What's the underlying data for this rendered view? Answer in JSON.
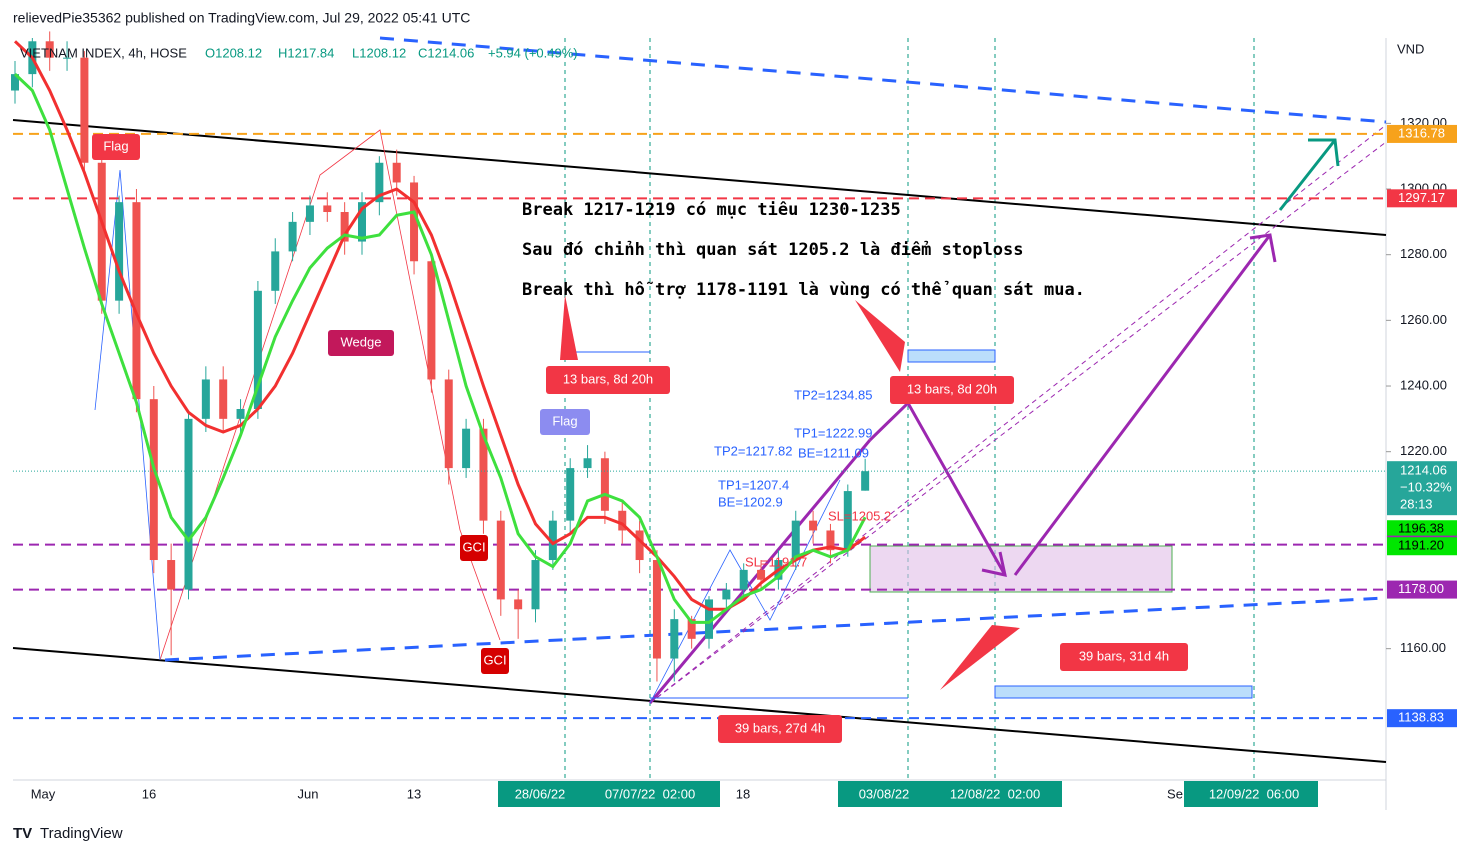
{
  "header": {
    "publisher": "relievedPie35362 published on TradingView.com, Jul 29, 2022 05:41 UTC",
    "brand": "TradingView"
  },
  "chart_data": {
    "type": "candlestick",
    "symbol": "VIETNAM INDEX, 4h, HOSE",
    "ohlc_legend": [
      "O1208.12",
      "H1217.84",
      "L1208.12",
      "C1214.06",
      "+5.94 (+0.49%)"
    ],
    "currency": "VND",
    "up_color": "#26a69a",
    "down_color": "#ef5350",
    "open": [
      1330,
      1335,
      1345,
      1340,
      1340,
      1308,
      1266,
      1296,
      1236,
      1187,
      1178,
      1230,
      1242,
      1230,
      1233,
      1269,
      1281,
      1290,
      1295,
      1293,
      1284,
      1296,
      1308,
      1302,
      1278,
      1242,
      1215,
      1227,
      1199,
      1175,
      1172,
      1187,
      1199,
      1215,
      1218,
      1202,
      1196,
      1187,
      1157,
      1169,
      1163,
      1175,
      1178,
      1184,
      1181,
      1187,
      1199,
      1196,
      1190,
      1208.12
    ],
    "high": [
      1339,
      1346,
      1348,
      1345,
      1342,
      1312,
      1298,
      1300,
      1240,
      1192,
      1232,
      1246,
      1246,
      1236,
      1272,
      1285,
      1293,
      1298,
      1299,
      1296,
      1299,
      1310,
      1312,
      1304,
      1280,
      1245,
      1230,
      1230,
      1202,
      1178,
      1190,
      1202,
      1218,
      1222,
      1220,
      1205,
      1199,
      1190,
      1172,
      1170,
      1176,
      1180,
      1186,
      1187,
      1190,
      1202,
      1202,
      1198,
      1210,
      1217.84
    ],
    "low": [
      1326,
      1331,
      1336,
      1336,
      1305,
      1262,
      1262,
      1232,
      1183,
      1158,
      1175,
      1226,
      1226,
      1226,
      1230,
      1265,
      1278,
      1286,
      1290,
      1280,
      1280,
      1292,
      1298,
      1274,
      1238,
      1210,
      1212,
      1195,
      1170,
      1163,
      1168,
      1184,
      1195,
      1212,
      1198,
      1192,
      1183,
      1150,
      1150,
      1160,
      1160,
      1172,
      1175,
      1178,
      1178,
      1184,
      1192,
      1186,
      1188,
      1208.12
    ],
    "close": [
      1335,
      1345,
      1340,
      1340,
      1308,
      1266,
      1296,
      1236,
      1187,
      1178,
      1230,
      1242,
      1230,
      1233,
      1269,
      1281,
      1290,
      1295,
      1293,
      1284,
      1296,
      1308,
      1302,
      1278,
      1242,
      1215,
      1227,
      1199,
      1175,
      1172,
      1187,
      1199,
      1215,
      1218,
      1202,
      1196,
      1187,
      1157,
      1169,
      1163,
      1175,
      1178,
      1184,
      1181,
      1187,
      1199,
      1196,
      1190,
      1208,
      1214.06
    ],
    "series": [
      {
        "color": "#f23030",
        "values": [
          1345,
          1340,
          1330,
          1318,
          1305,
          1290,
          1275,
          1262,
          1250,
          1240,
          1232,
          1228,
          1226,
          1228,
          1233,
          1240,
          1250,
          1262,
          1274,
          1286,
          1294,
          1298,
          1300,
          1296,
          1286,
          1272,
          1256,
          1240,
          1225,
          1210,
          1198,
          1192,
          1195,
          1200,
          1200,
          1198,
          1193,
          1188,
          1182,
          1175,
          1172,
          1172,
          1175,
          1180,
          1184,
          1187,
          1190,
          1191,
          1190,
          1194
        ]
      },
      {
        "color": "#3ee03e",
        "values": [
          1335,
          1330,
          1318,
          1300,
          1282,
          1265,
          1250,
          1235,
          1215,
          1200,
          1193,
          1200,
          1212,
          1225,
          1240,
          1255,
          1266,
          1276,
          1282,
          1286,
          1285,
          1286,
          1292,
          1293,
          1280,
          1260,
          1240,
          1225,
          1212,
          1195,
          1188,
          1185,
          1192,
          1205,
          1207,
          1205,
          1200,
          1188,
          1175,
          1168,
          1168,
          1172,
          1176,
          1178,
          1182,
          1188,
          1190,
          1188,
          1190,
          1200
        ]
      }
    ],
    "ylim": [
      1120,
      1346
    ],
    "yticks": [
      {
        "value": 1320,
        "label": "1320.00"
      },
      {
        "value": 1300,
        "label": "1300.00"
      },
      {
        "value": 1280,
        "label": "1280.00"
      },
      {
        "value": 1260,
        "label": "1260.00"
      },
      {
        "value": 1240,
        "label": "1240.00"
      },
      {
        "value": 1220,
        "label": "1220.00"
      },
      {
        "value": 1160,
        "label": "1160.00"
      }
    ],
    "x_labels": [
      "May",
      "16",
      "Jun",
      "13",
      "28/06/22",
      "07/07/22  02:00",
      "18",
      "03/08/22",
      "12/08/22  02:00",
      "Se",
      "12/09/22  06:00"
    ],
    "levels": [
      {
        "value": 1316.78,
        "label": "1316.78",
        "color": "#f7a21b",
        "line": true
      },
      {
        "value": 1297.17,
        "label": "1297.17",
        "color": "#f23645",
        "line": true
      },
      {
        "value": 1196.38,
        "label": "1196.38",
        "color": "#00e600",
        "line": false
      },
      {
        "value": 1191.7,
        "label": "1191.70",
        "color": "#9c27b0",
        "line": true
      },
      {
        "value": 1191.2,
        "label": "1191.20",
        "color": "#00e600",
        "line": false
      },
      {
        "value": 1178.0,
        "label": "1178.00",
        "color": "#9c27b0",
        "line": true
      },
      {
        "value": 1138.83,
        "label": "1138.83",
        "color": "#2962ff",
        "line": true
      }
    ],
    "last_price": {
      "value": 1214.06,
      "label": "1214.06",
      "change": "−10.32%",
      "countdown": "28:13"
    },
    "annotations": {
      "notes": [
        "Break 1217-1219 có mục tiêu 1230-1235",
        "Sau đó chỉnh thì quan sát 1205.2 là điểm stoploss",
        "Break thì hỗ trợ 1178-1191 là vùng có thể quan sát mua."
      ],
      "ranges": [
        "13 bars, 8d 20h",
        "13 bars, 8d 20h",
        "39 bars, 27d 4h",
        "39 bars, 31d 4h"
      ],
      "patterns": [
        "Flag",
        "Wedge",
        "Flag",
        "GCI",
        "GCI"
      ],
      "targets": [
        "TP2=1234.85",
        "TP1=1222.99",
        "BE=1211.09",
        "SL=1205.2",
        "TP2=1217.82",
        "TP1=1207.4",
        "BE=1202.9",
        "SL=1191.7"
      ]
    }
  }
}
